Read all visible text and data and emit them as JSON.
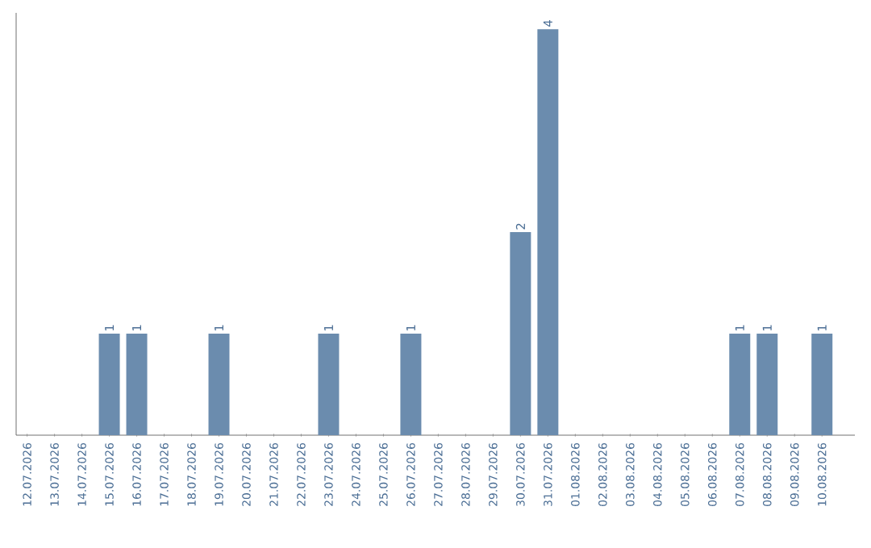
{
  "chart_data": {
    "type": "bar",
    "color": "#6b8cae",
    "categories": [
      "12.07.2026",
      "13.07.2026",
      "14.07.2026",
      "15.07.2026",
      "16.07.2026",
      "17.07.2026",
      "18.07.2026",
      "19.07.2026",
      "20.07.2026",
      "21.07.2026",
      "22.07.2026",
      "23.07.2026",
      "24.07.2026",
      "25.07.2026",
      "26.07.2026",
      "27.07.2026",
      "28.07.2026",
      "29.07.2026",
      "30.07.2026",
      "31.07.2026",
      "01.08.2026",
      "02.08.2026",
      "03.08.2026",
      "04.08.2026",
      "05.08.2026",
      "06.08.2026",
      "07.08.2026",
      "08.08.2026",
      "09.08.2026",
      "10.08.2026"
    ],
    "values": [
      0,
      0,
      0,
      1,
      1,
      0,
      0,
      1,
      0,
      0,
      0,
      1,
      0,
      0,
      1,
      0,
      0,
      0,
      2,
      4,
      0,
      0,
      0,
      0,
      0,
      0,
      1,
      1,
      0,
      1
    ],
    "value_labels": [
      null,
      null,
      null,
      "1",
      "1",
      null,
      null,
      "1",
      null,
      null,
      null,
      "1",
      null,
      null,
      "1",
      null,
      null,
      null,
      "2",
      "4",
      null,
      null,
      null,
      null,
      null,
      null,
      "1",
      "1",
      null,
      "1"
    ],
    "grid": false
  }
}
